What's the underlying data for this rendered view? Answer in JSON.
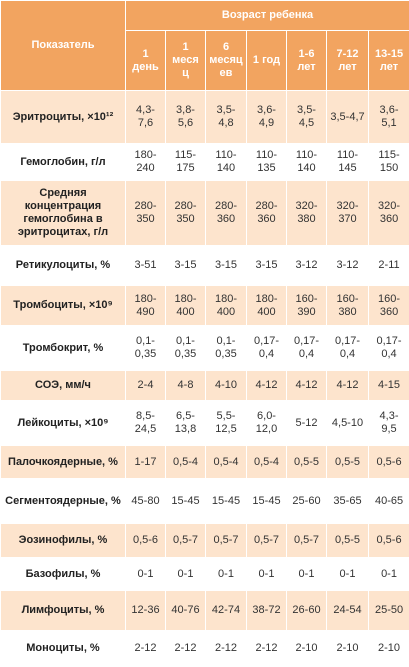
{
  "header": {
    "title": "Показатель",
    "group": "Возраст ребенка",
    "ages": [
      "1 день",
      "1 месяц",
      "6 месяцев",
      "1 год",
      "1-6 лет",
      "7-12 лет",
      "13-15 лет"
    ]
  },
  "rows": [
    {
      "label": "Эритроциты, ×10¹²",
      "values": [
        "4,3-7,6",
        "3,8-5,6",
        "3,5-4,8",
        "3,6-4,9",
        "3,5-4,5",
        "3,5-4,7",
        "3,6-5,1"
      ]
    },
    {
      "label": "Гемоглобин, г/л",
      "values": [
        "180-240",
        "115-175",
        "110-140",
        "110-135",
        "110-140",
        "110-145",
        "115-150"
      ]
    },
    {
      "label": "Средняя концентрация гемоглобина в эритроцитах, г/л",
      "values": [
        "280-350",
        "280-350",
        "280-360",
        "280-360",
        "320-380",
        "320-370",
        "320-360"
      ]
    },
    {
      "label": "Ретикулоциты, %",
      "values": [
        "3-51",
        "3-15",
        "3-15",
        "3-15",
        "3-12",
        "3-12",
        "2-11"
      ]
    },
    {
      "label": "Тромбоциты, ×10⁹",
      "values": [
        "180-490",
        "180-400",
        "180-400",
        "180-400",
        "160-390",
        "160-380",
        "160-360"
      ]
    },
    {
      "label": "Тромбокрит, %",
      "values": [
        "0,1-0,35",
        "0,1-0,35",
        "0,1-0,35",
        "0,17-0,4",
        "0,17-0,4",
        "0,17-0,4",
        "0,17-0,4"
      ]
    },
    {
      "label": "СОЭ, мм/ч",
      "values": [
        "2-4",
        "4-8",
        "4-10",
        "4-12",
        "4-12",
        "4-12",
        "4-15"
      ]
    },
    {
      "label": "Лейкоциты, ×10⁹",
      "values": [
        "8,5-24,5",
        "6,5-13,8",
        "5,5-12,5",
        "6,0-12,0",
        "5-12",
        "4,5-10",
        "4,3-9,5"
      ]
    },
    {
      "label": "Палочкоядерные, %",
      "values": [
        "1-17",
        "0,5-4",
        "0,5-4",
        "0,5-4",
        "0,5-5",
        "0,5-5",
        "0,5-6"
      ]
    },
    {
      "label": "Сегментоядерные, %",
      "values": [
        "45-80",
        "15-45",
        "15-45",
        "15-45",
        "25-60",
        "35-65",
        "40-65"
      ]
    },
    {
      "label": "Эозинофилы, %",
      "values": [
        "0,5-6",
        "0,5-7",
        "0,5-7",
        "0,5-7",
        "0,5-7",
        "0,5-5",
        "0,5-6"
      ]
    },
    {
      "label": "Базофилы, %",
      "values": [
        "0-1",
        "0-1",
        "0-1",
        "0-1",
        "0-1",
        "0-1",
        "0-1"
      ]
    },
    {
      "label": "Лимфоциты, %",
      "values": [
        "12-36",
        "40-76",
        "42-74",
        "38-72",
        "26-60",
        "24-54",
        "25-50"
      ]
    },
    {
      "label": "Моноциты, %",
      "values": [
        "2-12",
        "2-12",
        "2-12",
        "2-12",
        "2-10",
        "2-10",
        "2-10"
      ]
    }
  ]
}
